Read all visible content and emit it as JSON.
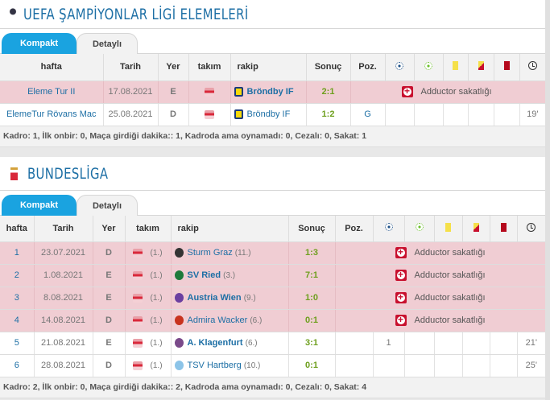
{
  "colors": {
    "accent": "#1aa3e0",
    "link": "#1d6fa5",
    "result": "#6e9f1e",
    "injury_row": "#f0cdd3",
    "injury_icon": "#c8102e"
  },
  "sections": [
    {
      "title": "UEFA ŞAMPİYONLAR LİGİ ELEMELERİ",
      "logo": "champions-league-logo",
      "tabs": [
        "Kompakt",
        "Detaylı"
      ],
      "headers": [
        "hafta",
        "Tarih",
        "Yer",
        "takım",
        "rakip",
        "Sonuç",
        "Poz."
      ],
      "icon_headers": [
        "goal-icon",
        "assist-icon",
        "yellow-card-icon",
        "yellow-red-card-icon",
        "red-card-icon",
        "clock-icon"
      ],
      "rows": [
        {
          "hafta": "Eleme Tur II",
          "tarih": "17.08.2021",
          "yer": "E",
          "rakip": "Bröndby IF",
          "rakip_bold": true,
          "sonuc": "2:1",
          "injury": "Adductor sakatlığı"
        },
        {
          "hafta": "ElemeTur Rövans Mac",
          "tarih": "25.08.2021",
          "yer": "D",
          "rakip": "Bröndby IF",
          "rakip_bold": false,
          "sonuc": "1:2",
          "poz": "G",
          "dakika": "19'"
        }
      ],
      "footer": "Kadro: 1, İlk onbir: 0, Maça girdiği dakika:: 1, Kadroda ama oynamadı: 0, Cezalı: 0, Sakat: 1"
    },
    {
      "title": "BUNDESLİGA",
      "logo": "bundesliga-logo",
      "tabs": [
        "Kompakt",
        "Detaylı"
      ],
      "headers": [
        "hafta",
        "Tarih",
        "Yer",
        "takım",
        "rakip",
        "Sonuç",
        "Poz."
      ],
      "rows": [
        {
          "hafta": "1",
          "tarih": "23.07.2021",
          "yer": "D",
          "takim_rank": "(1.)",
          "rakip": "Sturm Graz",
          "rakip_rank": "(11.)",
          "rakip_bold": false,
          "sonuc": "1:3",
          "injury": "Adductor sakatlığı"
        },
        {
          "hafta": "2",
          "tarih": "1.08.2021",
          "yer": "E",
          "takim_rank": "(1.)",
          "rakip": "SV Ried",
          "rakip_rank": "(3.)",
          "rakip_bold": true,
          "sonuc": "7:1",
          "injury": "Adductor sakatlığı"
        },
        {
          "hafta": "3",
          "tarih": "8.08.2021",
          "yer": "E",
          "takim_rank": "(1.)",
          "rakip": "Austria Wien",
          "rakip_rank": "(9.)",
          "rakip_bold": true,
          "sonuc": "1:0",
          "injury": "Adductor sakatlığı"
        },
        {
          "hafta": "4",
          "tarih": "14.08.2021",
          "yer": "D",
          "takim_rank": "(1.)",
          "rakip": "Admira Wacker",
          "rakip_rank": "(6.)",
          "rakip_bold": false,
          "sonuc": "0:1",
          "injury": "Adductor sakatlığı"
        },
        {
          "hafta": "5",
          "tarih": "21.08.2021",
          "yer": "E",
          "takim_rank": "(1.)",
          "rakip": "A. Klagenfurt",
          "rakip_rank": "(6.)",
          "rakip_bold": true,
          "sonuc": "3:1",
          "gol": "1",
          "dakika": "21'"
        },
        {
          "hafta": "6",
          "tarih": "28.08.2021",
          "yer": "D",
          "takim_rank": "(1.)",
          "rakip": "TSV Hartberg",
          "rakip_rank": "(10.)",
          "rakip_bold": false,
          "sonuc": "0:1",
          "dakika": "25'"
        }
      ],
      "footer": "Kadro: 2, İlk onbir: 0, Maça girdiği dakika:: 2, Kadroda ama oynamadı: 0, Cezalı: 0, Sakat: 4"
    }
  ]
}
